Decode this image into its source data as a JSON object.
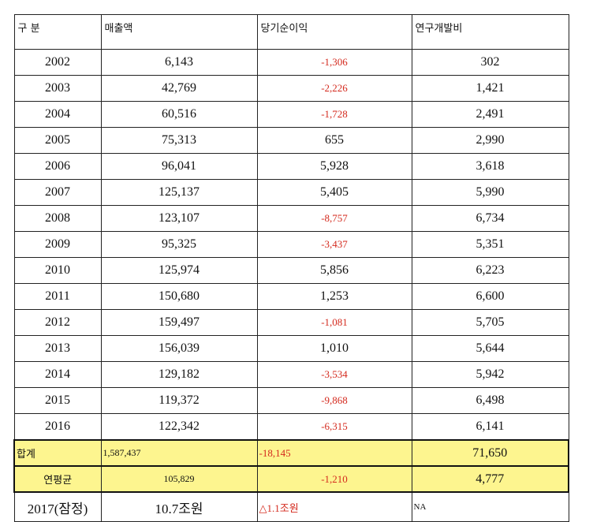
{
  "headers": [
    "구 분",
    "매출액",
    "당기순이익",
    "연구개발비"
  ],
  "rows": [
    {
      "year": "2002",
      "sales": "6,143",
      "net": "-1,306",
      "rnd": "302"
    },
    {
      "year": "2003",
      "sales": "42,769",
      "net": "-2,226",
      "rnd": "1,421"
    },
    {
      "year": "2004",
      "sales": "60,516",
      "net": "-1,728",
      "rnd": "2,491"
    },
    {
      "year": "2005",
      "sales": "75,313",
      "net": "655",
      "rnd": "2,990"
    },
    {
      "year": "2006",
      "sales": "96,041",
      "net": "5,928",
      "rnd": "3,618"
    },
    {
      "year": "2007",
      "sales": "125,137",
      "net": "5,405",
      "rnd": "5,990"
    },
    {
      "year": "2008",
      "sales": "123,107",
      "net": "-8,757",
      "rnd": "6,734"
    },
    {
      "year": "2009",
      "sales": "95,325",
      "net": "-3,437",
      "rnd": "5,351"
    },
    {
      "year": "2010",
      "sales": "125,974",
      "net": "5,856",
      "rnd": "6,223"
    },
    {
      "year": "2011",
      "sales": "150,680",
      "net": "1,253",
      "rnd": "6,600"
    },
    {
      "year": "2012",
      "sales": "159,497",
      "net": "-1,081",
      "rnd": "5,705"
    },
    {
      "year": "2013",
      "sales": "156,039",
      "net": "1,010",
      "rnd": "5,644"
    },
    {
      "year": "2014",
      "sales": "129,182",
      "net": "-3,534",
      "rnd": "5,942"
    },
    {
      "year": "2015",
      "sales": "119,372",
      "net": "-9,868",
      "rnd": "6,498"
    },
    {
      "year": "2016",
      "sales": "122,342",
      "net": "-6,315",
      "rnd": "6,141"
    }
  ],
  "total": {
    "label": "합계",
    "sales": "1,587,437",
    "net": "-18,145",
    "rnd": "71,650"
  },
  "average": {
    "label": "연평균",
    "sales": "105,829",
    "net": "-1,210",
    "rnd": "4,777"
  },
  "estimate": {
    "label": "2017(잠정)",
    "sales": "10.7조원",
    "net": "△1.1조원",
    "rnd": "NA"
  },
  "colors": {
    "negative": "#d42a1e",
    "highlight": "#fdf58f"
  }
}
